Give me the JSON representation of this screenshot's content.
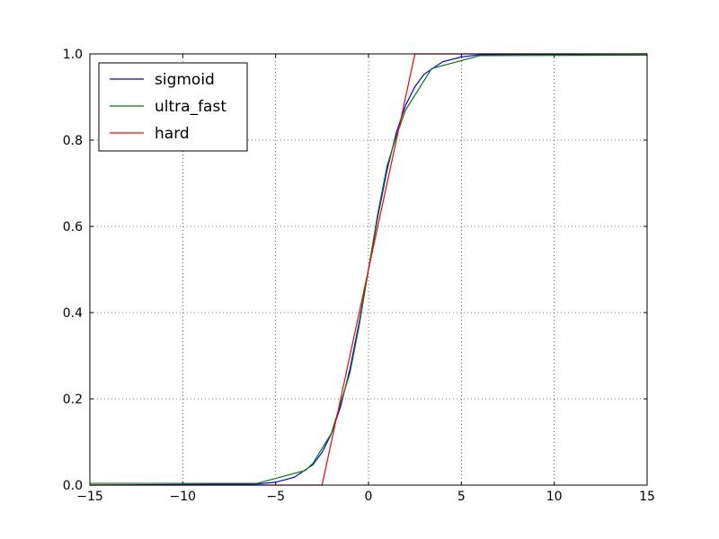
{
  "chart_data": {
    "type": "line",
    "xlim": [
      -15,
      15
    ],
    "xticks": [
      {
        "value": -15,
        "label": "−15"
      },
      {
        "value": -10,
        "label": "−10"
      },
      {
        "value": -5,
        "label": "−5"
      },
      0,
      5,
      10,
      15
    ],
    "ylim": [
      0,
      1
    ],
    "yticks": [
      {
        "value": 0,
        "label": "0.0"
      },
      0.2,
      0.4,
      0.6,
      0.8,
      {
        "value": 1,
        "label": "1.0"
      }
    ],
    "grid": true,
    "legend": "upper left",
    "series": [
      {
        "name": "sigmoid",
        "color": "#0000ff",
        "x": [
          -15,
          -6,
          -5,
          -4,
          -3,
          -2.5,
          -2,
          -1.5,
          -1,
          -0.5,
          0,
          0.5,
          1,
          1.5,
          2,
          2.5,
          3,
          4,
          5,
          6,
          15
        ],
        "values": [
          0.0,
          0.0025,
          0.0067,
          0.018,
          0.047,
          0.076,
          0.119,
          0.182,
          0.269,
          0.378,
          0.5,
          0.622,
          0.731,
          0.818,
          0.881,
          0.924,
          0.953,
          0.982,
          0.993,
          0.998,
          1.0
        ]
      },
      {
        "name": "ultra_fast",
        "color": "#008000",
        "x": [
          -15,
          -6,
          -3.4,
          -3,
          -2,
          -1,
          -0.5,
          0,
          0.5,
          1,
          1.5,
          2,
          3.4,
          6,
          15
        ],
        "values": [
          0.004,
          0.004,
          0.034,
          0.05,
          0.12,
          0.26,
          0.37,
          0.5,
          0.63,
          0.74,
          0.81,
          0.87,
          0.966,
          0.996,
          0.997
        ]
      },
      {
        "name": "hard",
        "color": "#ff0000",
        "x": [
          -15,
          -2.5,
          2.5,
          15
        ],
        "values": [
          0,
          0,
          1,
          1
        ]
      }
    ]
  }
}
